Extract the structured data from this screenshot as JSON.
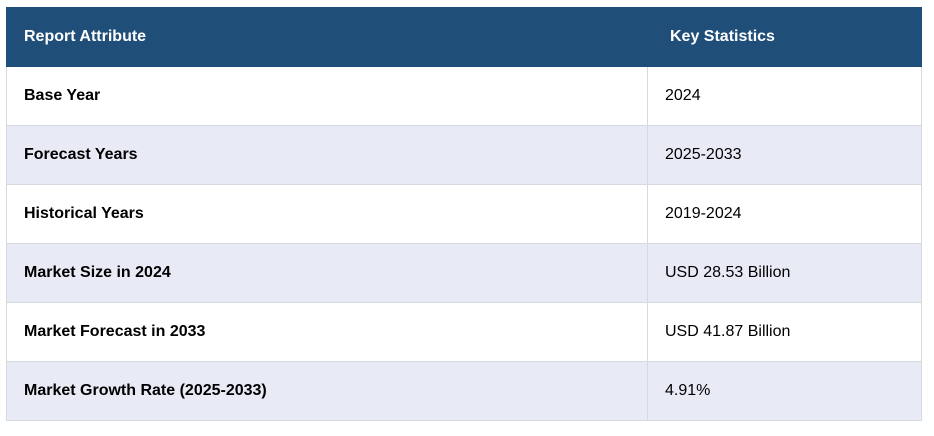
{
  "table": {
    "headers": [
      "Report Attribute",
      "Key Statistics"
    ],
    "rows": [
      [
        "Base Year",
        "2024"
      ],
      [
        "Forecast Years",
        "2025-2033"
      ],
      [
        "Historical Years",
        "2019-2024"
      ],
      [
        "Market Size in 2024",
        "USD 28.53 Billion"
      ],
      [
        "Market Forecast in 2033",
        "USD 41.87 Billion"
      ],
      [
        "Market Growth Rate (2025-2033)",
        "4.91%"
      ]
    ]
  },
  "colors": {
    "header_bg": "#1f4e79",
    "header_text": "#ffffff",
    "row_alt_bg": "#e8eaf6",
    "border": "#d5d9e0"
  }
}
